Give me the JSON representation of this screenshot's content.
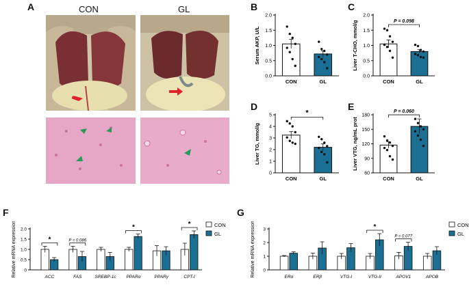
{
  "panels": {
    "A": {
      "letter": "A",
      "con_label": "CON",
      "gl_label": "GL",
      "colors": {
        "tissue": "#8a3a3a",
        "fat": "#e9e2b0",
        "histology": "#e7a8c8",
        "arrow_red": "#e0202a",
        "arrow_green": "#2a9a5a"
      }
    },
    "B": {
      "letter": "B"
    },
    "C": {
      "letter": "C"
    },
    "D": {
      "letter": "D"
    },
    "E": {
      "letter": "E"
    },
    "F": {
      "letter": "F"
    },
    "G": {
      "letter": "G"
    }
  },
  "colors": {
    "con": "#ffffff",
    "gl": "#1a6f93",
    "axis": "#111111"
  },
  "chart_data": [
    {
      "id": "B",
      "type": "bar",
      "categories": [
        "CON",
        "GL"
      ],
      "values": [
        1.05,
        0.72
      ],
      "errors": [
        0.15,
        0.1
      ],
      "points": [
        [
          1.62,
          1.38,
          1.25,
          1.05,
          0.92,
          0.78,
          0.55,
          0.33
        ],
        [
          1.12,
          0.88,
          0.82,
          0.7,
          0.62,
          0.55,
          0.45,
          0.25
        ]
      ],
      "ylabel": "Serum AKP, U/L",
      "ylim": [
        0,
        2.0
      ],
      "yticks": [
        "0.0",
        "0.5",
        "1.0",
        "1.5",
        "2.0"
      ],
      "annotation": ""
    },
    {
      "id": "C",
      "type": "bar",
      "categories": [
        "CON",
        "GL"
      ],
      "values": [
        1.05,
        0.8
      ],
      "errors": [
        0.13,
        0.06
      ],
      "points": [
        [
          1.55,
          1.5,
          1.3,
          1.12,
          1.02,
          0.95,
          0.82,
          0.6
        ],
        [
          1.02,
          0.98,
          0.85,
          0.8,
          0.72,
          0.68,
          0.62,
          0.6
        ]
      ],
      "ylabel": "Liver T-CHO, mmol/g",
      "ylim": [
        0,
        2.0
      ],
      "yticks": [
        "0.0",
        "0.5",
        "1.0",
        "1.5",
        "2.0"
      ],
      "annotation": "P = 0.098"
    },
    {
      "id": "D",
      "type": "bar",
      "categories": [
        "CON",
        "GL"
      ],
      "values": [
        3.25,
        2.2
      ],
      "errors": [
        0.3,
        0.3
      ],
      "points": [
        [
          4.45,
          4.25,
          4.0,
          3.5,
          3.05,
          2.75,
          2.6,
          2.5
        ],
        [
          3.1,
          2.9,
          2.6,
          2.3,
          2.15,
          1.8,
          1.6,
          0.9
        ]
      ],
      "ylabel": "Liver TG, mmol/g",
      "ylim": [
        0,
        5
      ],
      "yticks": [
        "0",
        "1",
        "2",
        "3",
        "4",
        "5"
      ],
      "annotation": "*"
    },
    {
      "id": "E",
      "type": "bar",
      "categories": [
        "CON",
        "GL"
      ],
      "values": [
        127,
        172
      ],
      "errors": [
        8,
        18
      ],
      "points": [
        [
          148,
          138,
          133,
          125,
          120,
          115,
          100,
          92
        ],
        [
          190,
          180,
          172,
          165,
          160,
          150,
          140,
          125
        ]
      ],
      "ylabel": "Liver VTG, ng/mL prot",
      "ylim": [
        60,
        200
      ],
      "yticks": [
        "60",
        "90",
        "120",
        "150",
        "180"
      ],
      "annotation": "P = 0.060"
    },
    {
      "id": "F",
      "type": "bar",
      "categories": [
        "ACC",
        "FAS",
        "SREBP-1c",
        "PPARα",
        "PPARγ",
        "CPT-I"
      ],
      "series": [
        {
          "name": "CON",
          "values": [
            1.0,
            1.0,
            1.0,
            1.0,
            0.93,
            1.0
          ],
          "errors": [
            0.15,
            0.15,
            0.1,
            0.1,
            0.25,
            0.3
          ]
        },
        {
          "name": "GL",
          "values": [
            0.5,
            0.65,
            0.65,
            1.63,
            0.93,
            1.72
          ],
          "errors": [
            0.1,
            0.25,
            0.2,
            0.12,
            0.2,
            0.18
          ]
        }
      ],
      "ylabel": "Relative mRNA expression",
      "ylim": [
        0,
        2.0
      ],
      "yticks": [
        "0",
        "0.5",
        "1.0",
        "1.5",
        "2.0"
      ],
      "annotations": [
        {
          "index": 0,
          "text": "*"
        },
        {
          "index": 1,
          "text": "P = 0.086"
        },
        {
          "index": 3,
          "text": "*"
        },
        {
          "index": 5,
          "text": "*"
        }
      ],
      "legend": "right"
    },
    {
      "id": "G",
      "type": "bar",
      "categories": [
        "ERα",
        "ERβ",
        "VTG-I",
        "VTG-II",
        "APOV1",
        "APOB"
      ],
      "series": [
        {
          "name": "CON",
          "values": [
            1.0,
            1.0,
            1.0,
            1.0,
            1.03,
            1.0
          ],
          "errors": [
            0.05,
            0.22,
            0.2,
            0.2,
            0.25,
            0.2
          ]
        },
        {
          "name": "GL",
          "values": [
            1.22,
            1.6,
            1.62,
            2.2,
            1.72,
            1.4
          ],
          "errors": [
            0.1,
            0.45,
            0.3,
            0.45,
            0.3,
            0.3
          ]
        }
      ],
      "ylabel": "Relative mRNA expression",
      "ylim": [
        0,
        3
      ],
      "yticks": [
        "0",
        "1",
        "2",
        "3"
      ],
      "annotations": [
        {
          "index": 3,
          "text": "*"
        },
        {
          "index": 4,
          "text": "P = 0.077"
        }
      ],
      "legend": "right"
    }
  ]
}
